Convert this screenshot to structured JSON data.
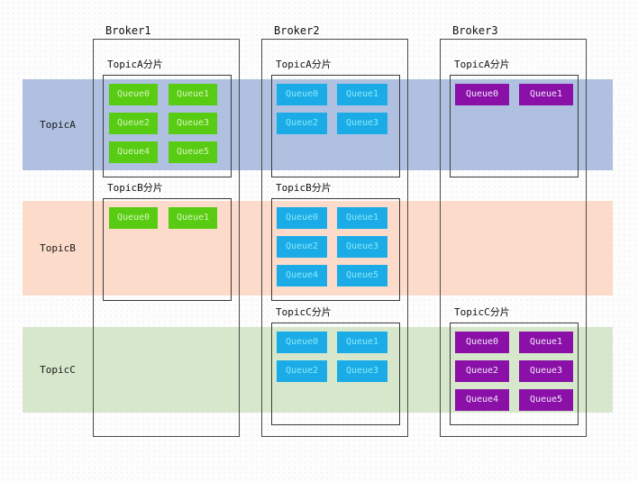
{
  "bands": [
    {
      "id": "A",
      "label": "TopicA",
      "color": "#AFC0E1"
    },
    {
      "id": "B",
      "label": "TopicB",
      "color": "#FCDBCA"
    },
    {
      "id": "C",
      "label": "TopicC",
      "color": "#D6E7CC"
    }
  ],
  "queue_styles": {
    "green": {
      "bg": "#57CC12",
      "text": "#D9F4BE"
    },
    "cyan": {
      "bg": "#1BACE8",
      "text": "#8BE9F7"
    },
    "purple": {
      "bg": "#8A10A8",
      "text": "#F2E9F6"
    }
  },
  "brokers": [
    {
      "title": "Broker1",
      "sections": [
        {
          "band": "A",
          "label": "TopicA分片",
          "style": "green",
          "queues": [
            "Queue0",
            "Queue1",
            "Queue2",
            "Queue3",
            "Queue4",
            "Queue5"
          ]
        },
        {
          "band": "B",
          "label": "TopicB分片",
          "style": "green",
          "queues": [
            "Queue0",
            "Queue1"
          ]
        }
      ]
    },
    {
      "title": "Broker2",
      "sections": [
        {
          "band": "A",
          "label": "TopicA分片",
          "style": "cyan",
          "queues": [
            "Queue0",
            "Queue1",
            "Queue2",
            "Queue3"
          ]
        },
        {
          "band": "B",
          "label": "TopicB分片",
          "style": "cyan",
          "queues": [
            "Queue0",
            "Queue1",
            "Queue2",
            "Queue3",
            "Queue4",
            "Queue5"
          ]
        },
        {
          "band": "C",
          "label": "TopicC分片",
          "style": "cyan",
          "queues": [
            "Queue0",
            "Queue1",
            "Queue2",
            "Queue3"
          ]
        }
      ]
    },
    {
      "title": "Broker3",
      "sections": [
        {
          "band": "A",
          "label": "TopicA分片",
          "style": "purple",
          "queues": [
            "Queue0",
            "Queue1"
          ]
        },
        {
          "band": "C",
          "label": "TopicC分片",
          "style": "purple",
          "queues": [
            "Queue0",
            "Queue1",
            "Queue2",
            "Queue3",
            "Queue4",
            "Queue5"
          ]
        }
      ]
    }
  ]
}
